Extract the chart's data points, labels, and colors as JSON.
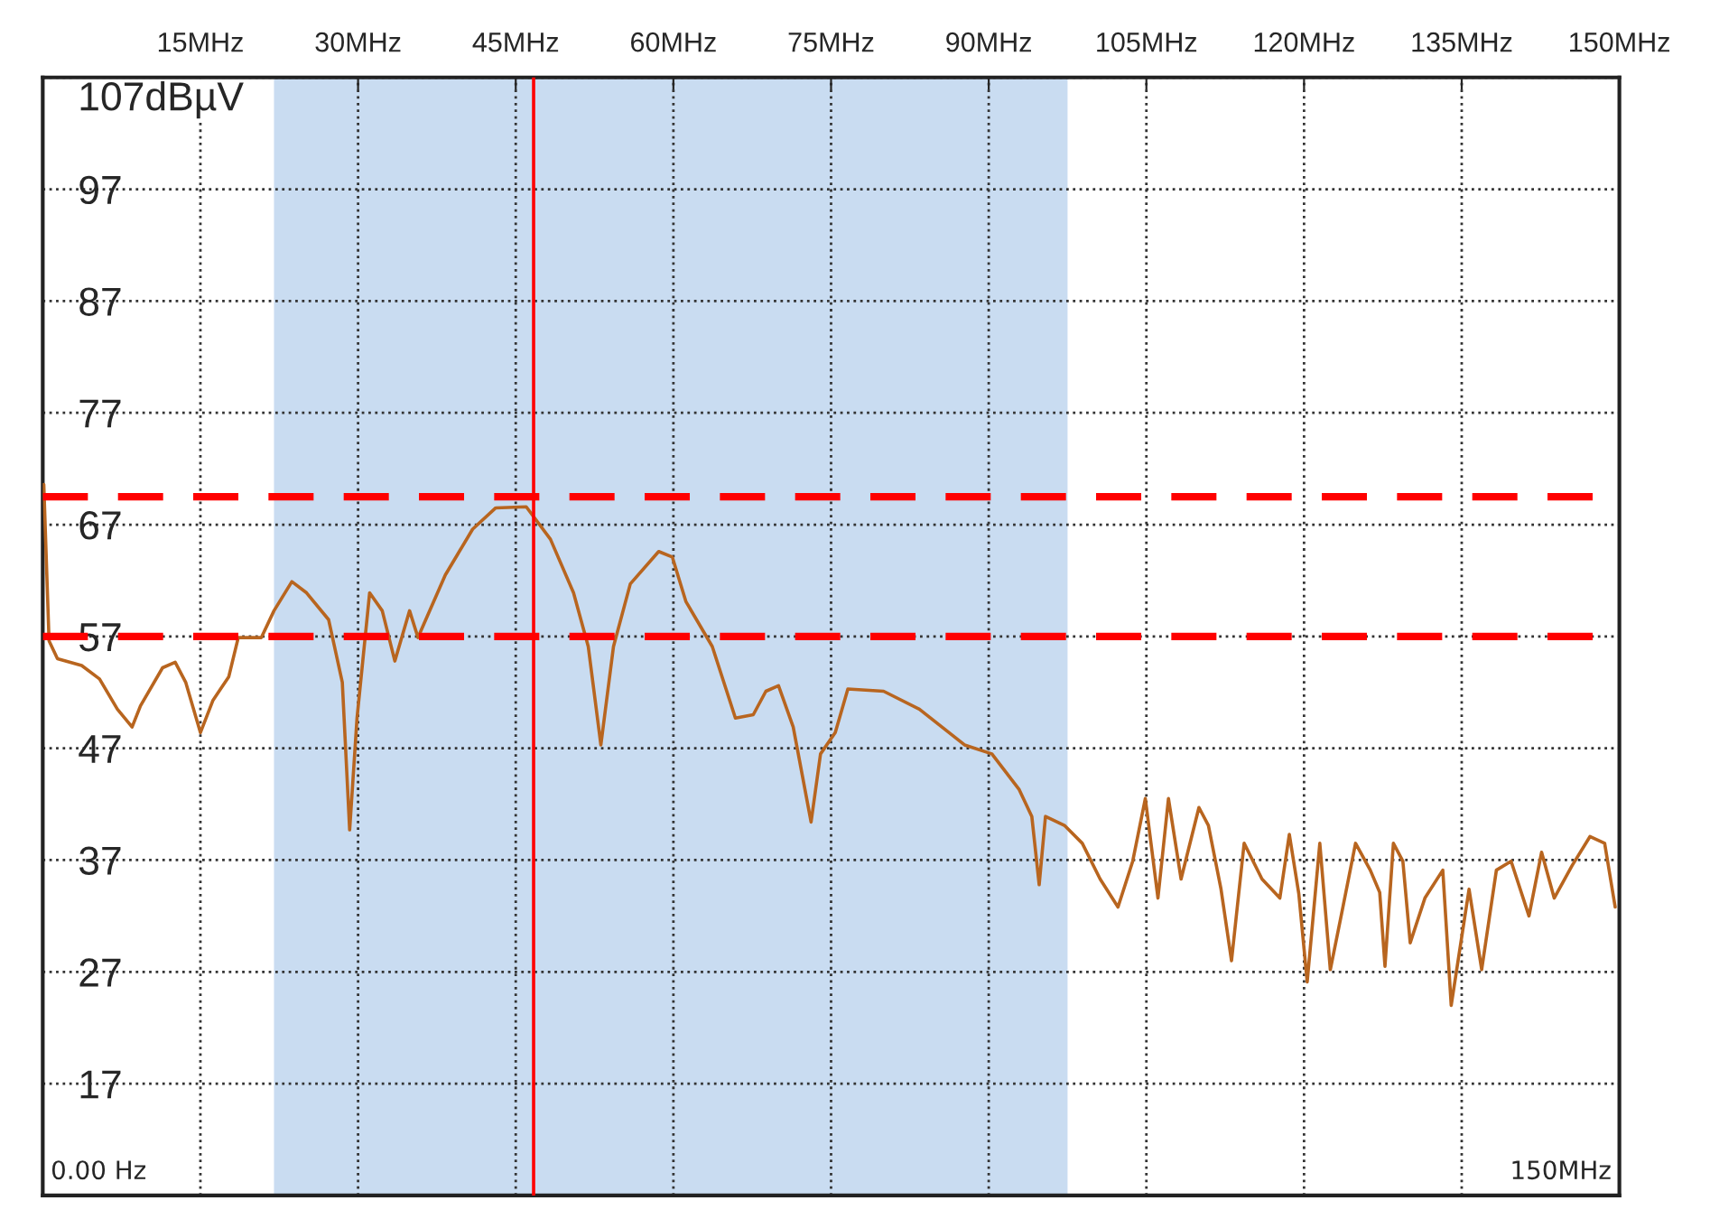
{
  "chart_data": {
    "type": "line",
    "x": [
      0.1,
      0.6,
      1.4,
      3.7,
      5.4,
      7.1,
      8.5,
      9.3,
      11.4,
      12.6,
      13.6,
      15.0,
      16.2,
      17.7,
      18.6,
      20.8,
      22.0,
      23.7,
      25.1,
      27.2,
      28.5,
      29.2,
      29.9,
      31.1,
      32.3,
      33.5,
      34.9,
      35.7,
      38.3,
      40.9,
      43.1,
      46.0,
      48.3,
      50.5,
      51.9,
      53.1,
      54.3,
      55.9,
      58.6,
      59.9,
      61.2,
      63.7,
      65.9,
      67.6,
      68.8,
      70.0,
      71.4,
      73.1,
      74.0,
      75.4,
      76.6,
      80.0,
      83.4,
      87.7,
      90.3,
      92.9,
      94.1,
      94.8,
      95.4,
      97.2,
      98.9,
      100.6,
      102.3,
      103.7,
      104.9,
      106.1,
      107.1,
      108.3,
      110.0,
      110.9,
      112.1,
      113.1,
      114.3,
      116.0,
      117.7,
      118.6,
      119.5,
      120.3,
      121.5,
      122.5,
      123.7,
      124.9,
      126.3,
      127.2,
      127.7,
      128.5,
      129.4,
      130.1,
      131.5,
      133.2,
      134.0,
      135.7,
      136.9,
      138.3,
      139.7,
      141.4,
      142.6,
      143.8,
      145.5,
      147.2,
      148.6,
      149.6
    ],
    "series": [
      {
        "color": "#b8651f",
        "values": [
          70.6,
          56.6,
          55.0,
          54.4,
          53.2,
          50.5,
          48.9,
          50.8,
          54.2,
          54.7,
          52.9,
          48.4,
          51.3,
          53.4,
          56.9,
          56.9,
          59.3,
          61.9,
          60.9,
          58.5,
          52.9,
          39.7,
          49.7,
          60.9,
          59.3,
          54.8,
          59.3,
          56.9,
          62.5,
          66.6,
          68.5,
          68.6,
          65.7,
          60.9,
          56.1,
          47.3,
          56.1,
          61.7,
          64.6,
          64.1,
          60.1,
          56.1,
          49.7,
          50.0,
          52.1,
          52.6,
          48.9,
          40.4,
          46.5,
          48.4,
          52.3,
          52.1,
          50.5,
          47.3,
          46.5,
          43.3,
          40.9,
          34.8,
          40.9,
          40.1,
          38.5,
          35.3,
          32.8,
          36.9,
          42.5,
          33.6,
          42.5,
          35.3,
          41.7,
          40.1,
          34.4,
          28.0,
          38.5,
          35.3,
          33.6,
          39.3,
          34.0,
          26.1,
          38.5,
          27.2,
          32.8,
          38.5,
          36.1,
          34.1,
          27.5,
          38.5,
          36.9,
          29.6,
          33.6,
          36.1,
          24.0,
          34.4,
          27.2,
          36.1,
          36.9,
          32.0,
          37.7,
          33.6,
          36.5,
          39.1,
          38.5,
          32.8
        ]
      }
    ],
    "xlim": [
      0,
      150
    ],
    "ylim": [
      7,
      107
    ],
    "xticks": [
      {
        "value": 15,
        "label": "15MHz"
      },
      {
        "value": 30,
        "label": "30MHz"
      },
      {
        "value": 45,
        "label": "45MHz"
      },
      {
        "value": 60,
        "label": "60MHz"
      },
      {
        "value": 75,
        "label": "75MHz"
      },
      {
        "value": 90,
        "label": "90MHz"
      },
      {
        "value": 105,
        "label": "105MHz"
      },
      {
        "value": 120,
        "label": "120MHz"
      },
      {
        "value": 135,
        "label": "135MHz"
      },
      {
        "value": 150,
        "label": "150MHz"
      }
    ],
    "yticks": [
      17,
      27,
      37,
      47,
      57,
      67,
      77,
      87,
      97,
      {
        "value": 107,
        "label": "107dBµV"
      }
    ],
    "grid": true,
    "ref_lines": [
      {
        "axis": "y",
        "value": 69.5,
        "color": "#ff0000",
        "line_style": "dashed"
      },
      {
        "axis": "y",
        "value": 57,
        "color": "#ff0000",
        "line_style": "dashed"
      },
      {
        "axis": "x",
        "value": 46.7,
        "color": "#ff0000",
        "line_style": "solid"
      }
    ],
    "bands": [
      {
        "axis": "x",
        "from": 22,
        "to": 97.5,
        "color": "#c9dcf1"
      }
    ],
    "annotations": [
      "0.00 Hz",
      "150MHz"
    ]
  }
}
